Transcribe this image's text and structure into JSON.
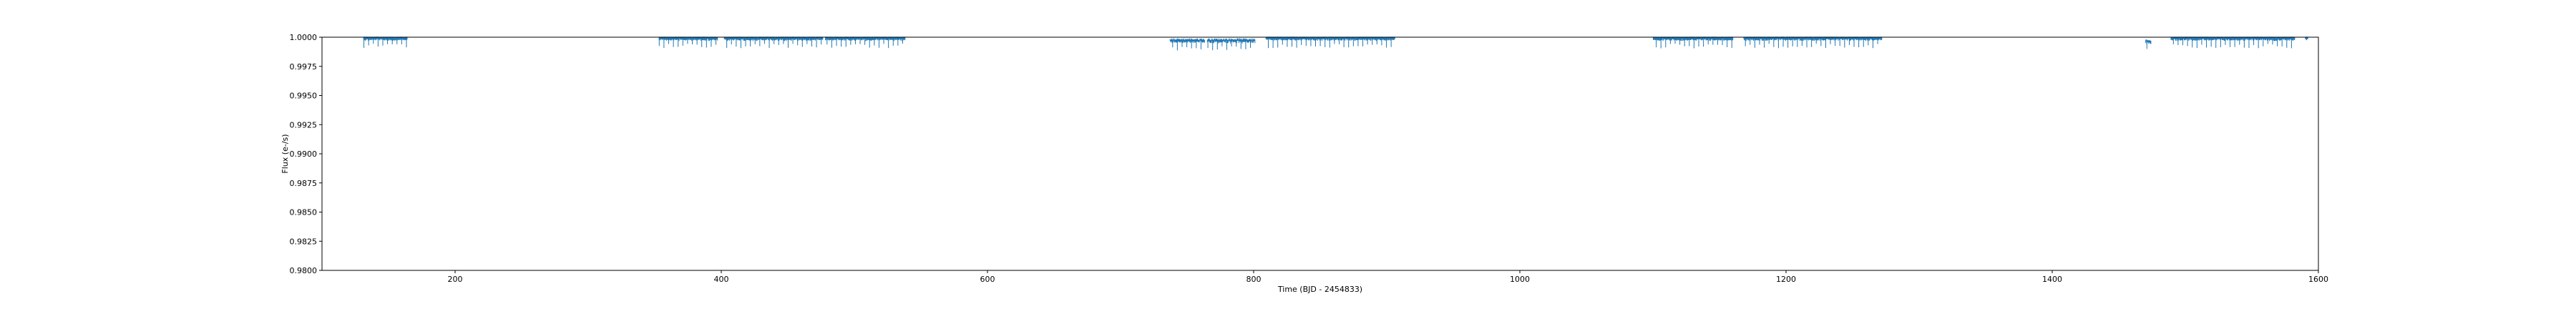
{
  "chart_data": {
    "type": "scatter",
    "title": "",
    "xlabel": "Time (BJD - 2454833)",
    "ylabel": "Flux (e-/s)",
    "xlim": [
      100,
      1600
    ],
    "ylim": [
      0.98,
      1.0
    ],
    "xticks": [
      {
        "value": 200,
        "label": "200"
      },
      {
        "value": 400,
        "label": "400"
      },
      {
        "value": 600,
        "label": "600"
      },
      {
        "value": 800,
        "label": "800"
      },
      {
        "value": 1000,
        "label": "1000"
      },
      {
        "value": 1200,
        "label": "1200"
      },
      {
        "value": 1400,
        "label": "1400"
      },
      {
        "value": 1600,
        "label": "1600"
      }
    ],
    "yticks": [
      {
        "value": 0.98,
        "label": "0.9800"
      },
      {
        "value": 0.9825,
        "label": "0.9825"
      },
      {
        "value": 0.985,
        "label": "0.9850"
      },
      {
        "value": 0.9875,
        "label": "0.9875"
      },
      {
        "value": 0.99,
        "label": "0.9900"
      },
      {
        "value": 0.9925,
        "label": "0.9925"
      },
      {
        "value": 0.995,
        "label": "0.9950"
      },
      {
        "value": 0.9975,
        "label": "0.9975"
      },
      {
        "value": 1.0,
        "label": "1.0000"
      }
    ],
    "grid": false,
    "legend": "none",
    "marker_color": "#1f77b4",
    "segments": [
      {
        "x_start": 131,
        "x_end": 164,
        "baseline": 1.0
      },
      {
        "x_start": 353,
        "x_end": 397,
        "baseline": 1.0
      },
      {
        "x_start": 402,
        "x_end": 476,
        "baseline": 1.0
      },
      {
        "x_start": 478,
        "x_end": 538,
        "baseline": 1.0
      },
      {
        "x_start": 737,
        "x_end": 763,
        "baseline": 0.9998
      },
      {
        "x_start": 765,
        "x_end": 801,
        "baseline": 0.9998
      },
      {
        "x_start": 809,
        "x_end": 906,
        "baseline": 1.0
      },
      {
        "x_start": 1100,
        "x_end": 1160,
        "baseline": 1.0
      },
      {
        "x_start": 1168,
        "x_end": 1272,
        "baseline": 1.0
      },
      {
        "x_start": 1470,
        "x_end": 1474,
        "baseline": 0.9997
      },
      {
        "x_start": 1489,
        "x_end": 1582,
        "baseline": 1.0
      },
      {
        "x_start": 1590,
        "x_end": 1592,
        "baseline": 1.0
      }
    ],
    "transit_period": 3.55,
    "transit_depth": 0.0008,
    "scatter_noise": 0.00015
  }
}
